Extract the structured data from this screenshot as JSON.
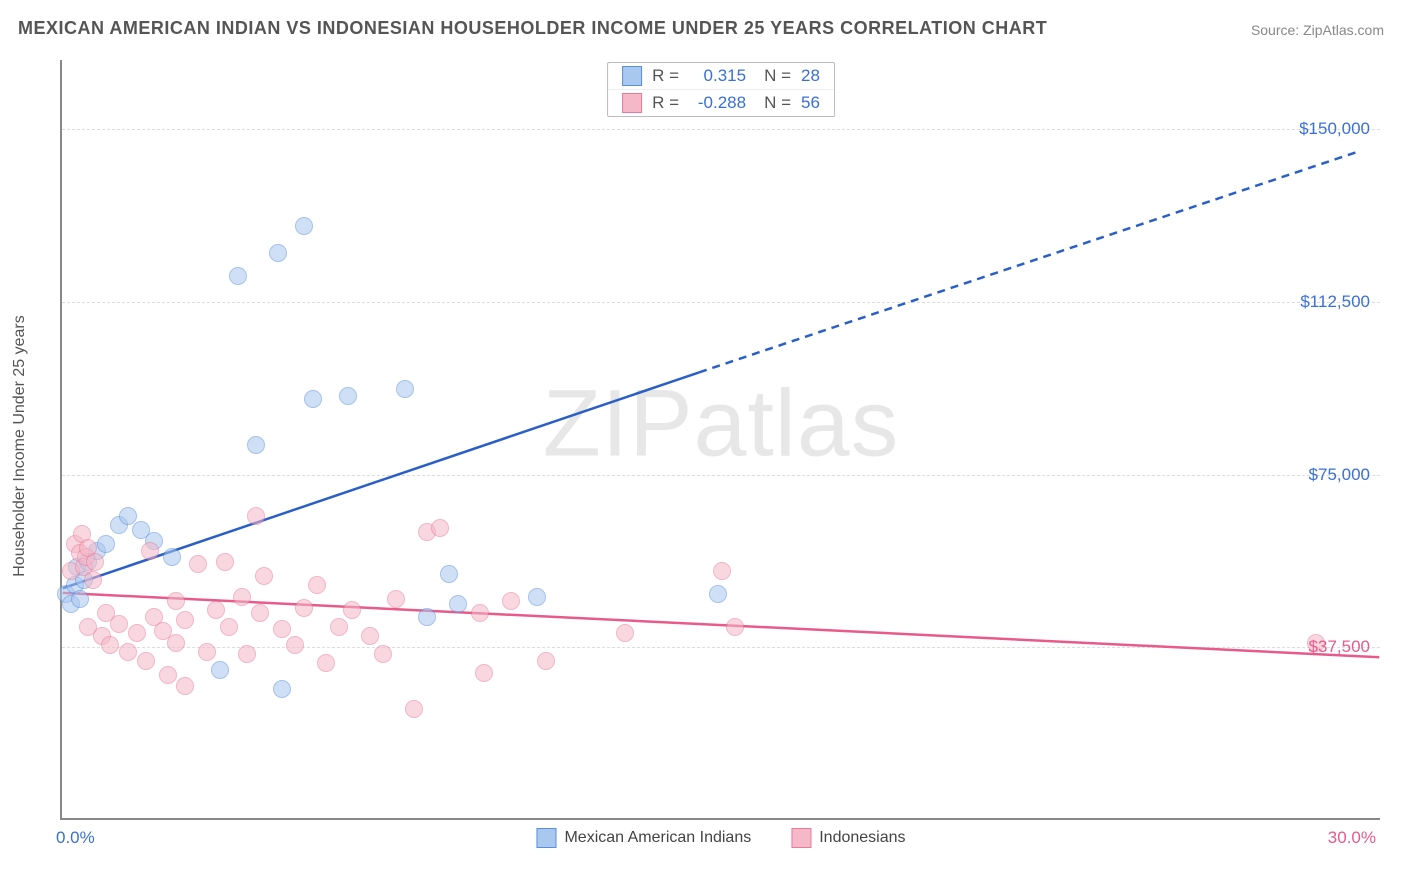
{
  "title": "MEXICAN AMERICAN INDIAN VS INDONESIAN HOUSEHOLDER INCOME UNDER 25 YEARS CORRELATION CHART",
  "source_label": "Source: ZipAtlas.com",
  "y_axis_label": "Householder Income Under 25 years",
  "watermark": "ZIPatlas",
  "chart": {
    "type": "scatter",
    "background_color": "#ffffff",
    "grid_color": "#dddddd",
    "axis_color": "#888888",
    "xlim": [
      0,
      30
    ],
    "ylim": [
      0,
      165000
    ],
    "x_ticks": [
      {
        "value": 0,
        "label": "0.0%",
        "color": "#3a6fd8"
      },
      {
        "value": 30,
        "label": "30.0%",
        "color": "#e85a8a"
      }
    ],
    "y_ticks": [
      {
        "value": 37500,
        "label": "$37,500",
        "color": "#e85a8a"
      },
      {
        "value": 75000,
        "label": "$75,000",
        "color": "#3a6fd8"
      },
      {
        "value": 112500,
        "label": "$112,500",
        "color": "#3a6fd8"
      },
      {
        "value": 150000,
        "label": "$150,000",
        "color": "#3a6fd8"
      }
    ],
    "point_radius": 9,
    "point_opacity": 0.55,
    "series": [
      {
        "name": "Mexican American Indians",
        "color_fill": "#a8c8f0",
        "color_stroke": "#5a8fd8",
        "r_label": "R =",
        "r_value": "0.315",
        "n_label": "N =",
        "n_value": "28",
        "stat_value_color": "#3a6fd8",
        "trend": {
          "solid": {
            "x1": 0,
            "y1": 50000,
            "x2": 14.5,
            "y2": 97000
          },
          "dashed": {
            "x1": 14.5,
            "y1": 97000,
            "x2": 29.5,
            "y2": 145000
          },
          "stroke": "#2a5fc8",
          "width": 2.5,
          "dash": "8 6"
        },
        "points": [
          {
            "x": 0.1,
            "y": 49000
          },
          {
            "x": 0.2,
            "y": 47000
          },
          {
            "x": 0.3,
            "y": 51000
          },
          {
            "x": 0.35,
            "y": 55000
          },
          {
            "x": 0.4,
            "y": 48000
          },
          {
            "x": 0.5,
            "y": 52000
          },
          {
            "x": 0.6,
            "y": 56000
          },
          {
            "x": 0.8,
            "y": 58500
          },
          {
            "x": 1.0,
            "y": 60000
          },
          {
            "x": 1.3,
            "y": 64000
          },
          {
            "x": 1.5,
            "y": 66000
          },
          {
            "x": 1.8,
            "y": 63000
          },
          {
            "x": 2.1,
            "y": 60500
          },
          {
            "x": 2.5,
            "y": 57000
          },
          {
            "x": 3.6,
            "y": 32500
          },
          {
            "x": 4.0,
            "y": 118000
          },
          {
            "x": 4.4,
            "y": 81500
          },
          {
            "x": 4.9,
            "y": 123000
          },
          {
            "x": 5.0,
            "y": 28500
          },
          {
            "x": 5.5,
            "y": 129000
          },
          {
            "x": 5.7,
            "y": 91500
          },
          {
            "x": 6.5,
            "y": 92000
          },
          {
            "x": 7.8,
            "y": 93500
          },
          {
            "x": 8.3,
            "y": 44000
          },
          {
            "x": 8.8,
            "y": 53500
          },
          {
            "x": 9.0,
            "y": 47000
          },
          {
            "x": 10.8,
            "y": 48500
          },
          {
            "x": 14.9,
            "y": 49000
          }
        ]
      },
      {
        "name": "Indonesians",
        "color_fill": "#f5b8c8",
        "color_stroke": "#e87a9a",
        "r_label": "R =",
        "r_value": "-0.288",
        "n_label": "N =",
        "n_value": "56",
        "stat_value_color": "#3a6fd8",
        "trend": {
          "solid": {
            "x1": 0,
            "y1": 49000,
            "x2": 30,
            "y2": 35000
          },
          "stroke": "#e85a8a",
          "width": 2.5
        },
        "points": [
          {
            "x": 0.2,
            "y": 54000
          },
          {
            "x": 0.3,
            "y": 60000
          },
          {
            "x": 0.4,
            "y": 58000
          },
          {
            "x": 0.45,
            "y": 62000
          },
          {
            "x": 0.5,
            "y": 55000
          },
          {
            "x": 0.55,
            "y": 57000
          },
          {
            "x": 0.6,
            "y": 59000
          },
          {
            "x": 0.7,
            "y": 52000
          },
          {
            "x": 0.75,
            "y": 56000
          },
          {
            "x": 0.6,
            "y": 42000
          },
          {
            "x": 0.9,
            "y": 40000
          },
          {
            "x": 1.0,
            "y": 45000
          },
          {
            "x": 1.1,
            "y": 38000
          },
          {
            "x": 1.3,
            "y": 42500
          },
          {
            "x": 1.5,
            "y": 36500
          },
          {
            "x": 1.7,
            "y": 40500
          },
          {
            "x": 1.9,
            "y": 34500
          },
          {
            "x": 2.0,
            "y": 58500
          },
          {
            "x": 2.1,
            "y": 44000
          },
          {
            "x": 2.3,
            "y": 41000
          },
          {
            "x": 2.4,
            "y": 31500
          },
          {
            "x": 2.6,
            "y": 47500
          },
          {
            "x": 2.6,
            "y": 38500
          },
          {
            "x": 2.8,
            "y": 43500
          },
          {
            "x": 2.8,
            "y": 29000
          },
          {
            "x": 3.1,
            "y": 55500
          },
          {
            "x": 3.3,
            "y": 36500
          },
          {
            "x": 3.5,
            "y": 45500
          },
          {
            "x": 3.7,
            "y": 56000
          },
          {
            "x": 3.8,
            "y": 42000
          },
          {
            "x": 4.1,
            "y": 48500
          },
          {
            "x": 4.2,
            "y": 36000
          },
          {
            "x": 4.4,
            "y": 66000
          },
          {
            "x": 4.5,
            "y": 45000
          },
          {
            "x": 4.6,
            "y": 53000
          },
          {
            "x": 5.0,
            "y": 41500
          },
          {
            "x": 5.3,
            "y": 38000
          },
          {
            "x": 5.5,
            "y": 46000
          },
          {
            "x": 5.8,
            "y": 51000
          },
          {
            "x": 6.0,
            "y": 34000
          },
          {
            "x": 6.3,
            "y": 42000
          },
          {
            "x": 6.6,
            "y": 45500
          },
          {
            "x": 7.0,
            "y": 40000
          },
          {
            "x": 7.3,
            "y": 36000
          },
          {
            "x": 7.6,
            "y": 48000
          },
          {
            "x": 8.0,
            "y": 24000
          },
          {
            "x": 8.3,
            "y": 62500
          },
          {
            "x": 8.6,
            "y": 63500
          },
          {
            "x": 9.5,
            "y": 45000
          },
          {
            "x": 9.6,
            "y": 32000
          },
          {
            "x": 10.2,
            "y": 47500
          },
          {
            "x": 11.0,
            "y": 34500
          },
          {
            "x": 12.8,
            "y": 40500
          },
          {
            "x": 15.0,
            "y": 54000
          },
          {
            "x": 15.3,
            "y": 42000
          },
          {
            "x": 28.5,
            "y": 38500
          }
        ]
      }
    ]
  },
  "bottom_legend": [
    {
      "label": "Mexican American Indians",
      "fill": "#a8c8f0",
      "stroke": "#5a8fd8"
    },
    {
      "label": "Indonesians",
      "fill": "#f5b8c8",
      "stroke": "#e87a9a"
    }
  ]
}
